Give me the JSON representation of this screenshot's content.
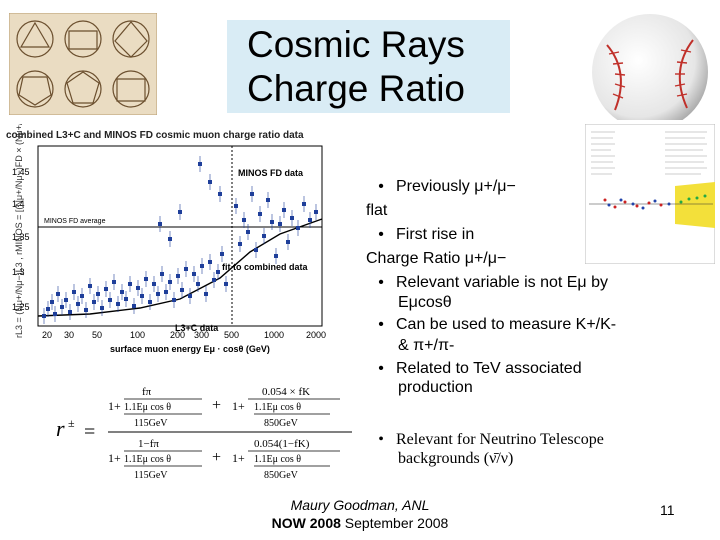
{
  "slide": {
    "title_line1": "Cosmic Rays",
    "title_line2": "Charge Ratio",
    "page_number": "11"
  },
  "bullets": [
    {
      "bullet": "•",
      "text": "Previously μ+/μ−"
    },
    {
      "text": "flat"
    },
    {
      "bullet": "•",
      "text": "First rise in"
    },
    {
      "text": "Charge Ratio μ+/μ−"
    },
    {
      "bullet": "•",
      "text": "Relevant variable is not Eμ by"
    },
    {
      "text": "Eμcosθ"
    },
    {
      "bullet": "•",
      "text": "Can be used to measure K+/K-"
    },
    {
      "text": "& π+/π-"
    },
    {
      "bullet": "•",
      "text": "Related to TeV associated"
    },
    {
      "text": "production"
    },
    {
      "bullet": "•",
      "text": "Relevant for Neutrino Telescope"
    },
    {
      "text": "backgrounds (ν̄/ν)"
    }
  ],
  "footer": {
    "author": "Maury Goodman, ANL",
    "conf_bold": "NOW 2008",
    "conf_rest": " September 2008"
  },
  "plot": {
    "title": "combined L3+C and MINOS FD cosmic muon charge ratio data",
    "yticks": [
      "1.45",
      "1.4",
      "1.35",
      "1.3",
      "1.25"
    ],
    "xticks": [
      "20",
      "30",
      "50",
      "100",
      "200",
      "300",
      "500",
      "1000",
      "2000"
    ],
    "xlabel": "surface muon energy  Eμ · cosθ  (GeV)",
    "ylabel": "rL3 = (Nμ+/Nμ−)L3 ,  rMINOS = [(Nμ+/Nμ−)FD × (Nμ+/Nμ−)...]",
    "label_minos_data": "MINOS FD data",
    "label_minos_avg": "MINOS FD average",
    "label_fit": "fit to combined data",
    "label_l3c": "L3+C data"
  },
  "formula": {
    "lhs": "r",
    "sup": "±",
    "eq": "=",
    "row1a_num": "fπ",
    "row1a_den": "1.1Eμ cos θ",
    "row1a_den2": "115GeV",
    "row1b_num": "0.054 × fK",
    "row1b_den": "1.1Eμ cos θ",
    "row1b_den2": "850GeV",
    "row2a_num": "1−fπ",
    "row2a_den": "1.1Eμ cos θ",
    "row2a_den2": "115GeV",
    "row2b_num": "0.054(1−fK)",
    "row2b_den": "1.1Eμ cos θ",
    "row2b_den2": "850GeV",
    "one": "1+",
    "plus": "+"
  },
  "colors": {
    "title_bg": "#d9ecf5",
    "data_point": "#1f3f9a",
    "fit_line": "#000000"
  }
}
